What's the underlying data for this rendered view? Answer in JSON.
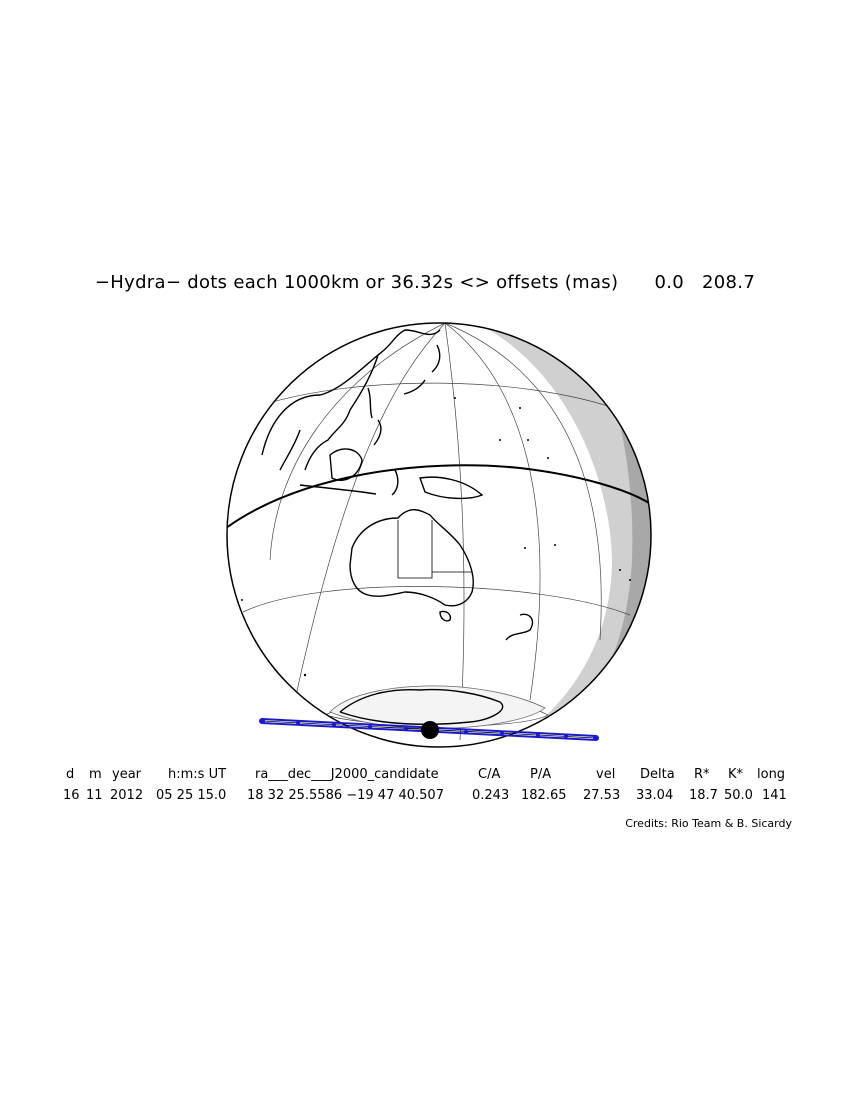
{
  "header": {
    "title": "−Hydra− dots each 1000km or 36.32s <> offsets (mas)",
    "offset_ra": "0.0",
    "offset_dec": "208.7"
  },
  "table": {
    "columns": [
      "d",
      "m",
      "year",
      "h:m:s UT",
      "ra___dec___J2000_candidate",
      "C/A",
      "P/A",
      "vel",
      "Delta",
      "R*",
      "K*",
      "long"
    ],
    "values": [
      "16",
      "11",
      "2012",
      "05 25 15.0",
      "18 32 25.5586 −19 47 40.507",
      "0.243",
      "182.65",
      "27.53",
      "33.04",
      "18.7",
      "50.0",
      "141"
    ]
  },
  "credits": "Credits: Rio Team & B. Sicardy",
  "colors": {
    "track": "#1a1acc",
    "night": "#d0d0d0",
    "twilight": "#a8a8a8",
    "coast": "#000000"
  },
  "icons": {
    "occulting_body": "filled-black-disc",
    "track_dots": "track-dot-icon"
  }
}
